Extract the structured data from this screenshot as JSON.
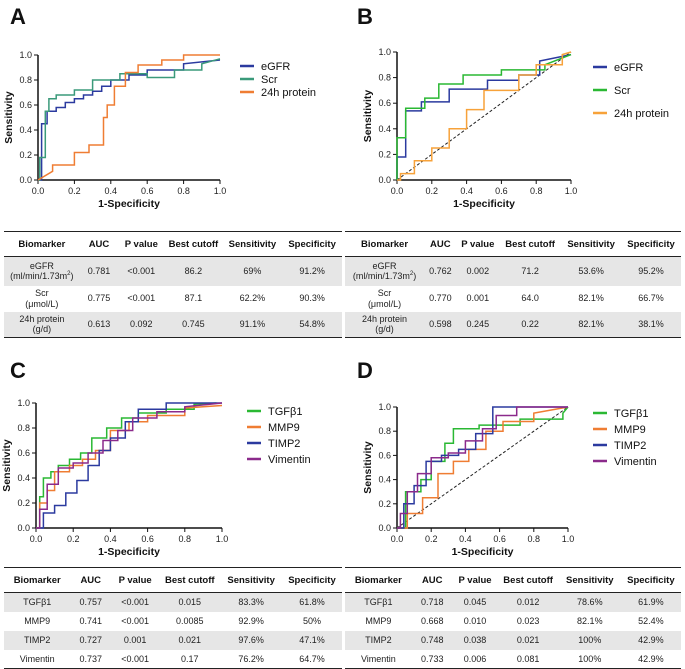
{
  "panels": [
    {
      "letter": "A",
      "chart": {
        "xlabel": "1-Specificity",
        "ylabel": "Sensitivity",
        "ticks": [
          "0.0",
          "0.2",
          "0.4",
          "0.6",
          "0.8",
          "1.0"
        ]
      },
      "table": {
        "headers": [
          "Biomarker",
          "AUC",
          "P value",
          "Best cutoff",
          "Sensitivity",
          "Specificity"
        ],
        "rows": [
          {
            "name": "eGFR",
            "sub": "(ml/min/1.73m",
            "sup": "2",
            "subEnd": ")",
            "auc": "0.781",
            "p": "<0.001",
            "cutoff": "86.2",
            "sens": "69%",
            "spec": "91.2%"
          },
          {
            "name": "Scr",
            "sub": "(μmol/L)",
            "sup": "",
            "subEnd": "",
            "auc": "0.775",
            "p": "<0.001",
            "cutoff": "87.1",
            "sens": "62.2%",
            "spec": "90.3%"
          },
          {
            "name": "24h protein",
            "sub": "(g/d)",
            "sup": "",
            "subEnd": "",
            "auc": "0.613",
            "p": "0.092",
            "cutoff": "0.745",
            "sens": "91.1%",
            "spec": "54.8%"
          }
        ]
      }
    },
    {
      "letter": "B",
      "chart": {
        "xlabel": "1-Specificity",
        "ylabel": "Sensitivity",
        "ticks": [
          "0.0",
          "0.2",
          "0.4",
          "0.6",
          "0.8",
          "1.0"
        ]
      },
      "table": {
        "headers": [
          "Biomarker",
          "AUC",
          "P value",
          "Best cutoff",
          "Sensitivity",
          "Specificity"
        ],
        "rows": [
          {
            "name": "eGFR",
            "sub": "(ml/min/1.73m",
            "sup": "2",
            "subEnd": ")",
            "auc": "0.762",
            "p": "0.002",
            "cutoff": "71.2",
            "sens": "53.6%",
            "spec": "95.2%"
          },
          {
            "name": "Scr",
            "sub": "(μmol/L)",
            "sup": "",
            "subEnd": "",
            "auc": "0.770",
            "p": "0.001",
            "cutoff": "64.0",
            "sens": "82.1%",
            "spec": "66.7%"
          },
          {
            "name": "24h protein",
            "sub": "(g/d)",
            "sup": "",
            "subEnd": "",
            "auc": "0.598",
            "p": "0.245",
            "cutoff": "0.22",
            "sens": "82.1%",
            "spec": "38.1%"
          }
        ]
      }
    },
    {
      "letter": "C",
      "chart": {
        "xlabel": "1-Specificity",
        "ylabel": "Sensitivity",
        "ticks": [
          "0.0",
          "0.2",
          "0.4",
          "0.6",
          "0.8",
          "1.0"
        ]
      },
      "table": {
        "headers": [
          "Biomarker",
          "AUC",
          "P value",
          "Best cutoff",
          "Sensitivity",
          "Specificity"
        ],
        "rows": [
          {
            "name": "TGFβ1",
            "auc": "0.757",
            "p": "<0.001",
            "cutoff": "0.015",
            "sens": "83.3%",
            "spec": "61.8%"
          },
          {
            "name": "MMP9",
            "auc": "0.741",
            "p": "<0.001",
            "cutoff": "0.0085",
            "sens": "92.9%",
            "spec": "50%"
          },
          {
            "name": "TIMP2",
            "auc": "0.727",
            "p": "0.001",
            "cutoff": "0.021",
            "sens": "97.6%",
            "spec": "47.1%"
          },
          {
            "name": "Vimentin",
            "auc": "0.737",
            "p": "<0.001",
            "cutoff": "0.17",
            "sens": "76.2%",
            "spec": "64.7%"
          }
        ]
      }
    },
    {
      "letter": "D",
      "chart": {
        "xlabel": "1-Specificity",
        "ylabel": "Sensitivity",
        "ticks": [
          "0.0",
          "0.2",
          "0.4",
          "0.6",
          "0.8",
          "1.0"
        ]
      },
      "table": {
        "headers": [
          "Biomarker",
          "AUC",
          "P value",
          "Best cutoff",
          "Sensitivity",
          "Specificity"
        ],
        "rows": [
          {
            "name": "TGFβ1",
            "auc": "0.718",
            "p": "0.045",
            "cutoff": "0.012",
            "sens": "78.6%",
            "spec": "61.9%"
          },
          {
            "name": "MMP9",
            "auc": "0.668",
            "p": "0.010",
            "cutoff": "0.023",
            "sens": "82.1%",
            "spec": "52.4%"
          },
          {
            "name": "TIMP2",
            "auc": "0.748",
            "p": "0.038",
            "cutoff": "0.021",
            "sens": "100%",
            "spec": "42.9%"
          },
          {
            "name": "Vimentin",
            "auc": "0.733",
            "p": "0.006",
            "cutoff": "0.081",
            "sens": "100%",
            "spec": "42.9%"
          }
        ]
      }
    }
  ],
  "chart_data": [
    {
      "type": "line",
      "title": "A",
      "xlabel": "1-Specificity",
      "ylabel": "Sensitivity",
      "xlim": [
        0,
        1
      ],
      "ylim": [
        0,
        1
      ],
      "diagonal": false,
      "legend": "right",
      "series": [
        {
          "name": "eGFR",
          "color": "#2b3a9f",
          "x": [
            0,
            0.02,
            0.02,
            0.05,
            0.05,
            0.1,
            0.1,
            0.15,
            0.15,
            0.2,
            0.2,
            0.25,
            0.25,
            0.3,
            0.3,
            0.35,
            0.35,
            0.4,
            0.4,
            0.5,
            0.5,
            0.6,
            0.6,
            0.8,
            0.8,
            1
          ],
          "y": [
            0,
            0,
            0.45,
            0.45,
            0.55,
            0.55,
            0.58,
            0.58,
            0.62,
            0.62,
            0.65,
            0.65,
            0.68,
            0.68,
            0.71,
            0.71,
            0.75,
            0.75,
            0.8,
            0.8,
            0.84,
            0.84,
            0.88,
            0.88,
            0.93,
            0.96
          ]
        },
        {
          "name": "Scr",
          "color": "#3a9a7a",
          "x": [
            0,
            0.01,
            0.01,
            0.04,
            0.04,
            0.06,
            0.06,
            0.1,
            0.1,
            0.2,
            0.2,
            0.3,
            0.3,
            0.45,
            0.45,
            0.6,
            0.6,
            0.75,
            0.75,
            0.9,
            0.9,
            1
          ],
          "y": [
            0,
            0,
            0.18,
            0.18,
            0.55,
            0.55,
            0.65,
            0.65,
            0.68,
            0.68,
            0.72,
            0.72,
            0.8,
            0.8,
            0.85,
            0.85,
            0.82,
            0.82,
            0.88,
            0.88,
            0.93,
            0.97
          ]
        },
        {
          "name": "24h protein",
          "color": "#ef7d33",
          "x": [
            0,
            0.08,
            0.08,
            0.2,
            0.2,
            0.28,
            0.28,
            0.36,
            0.36,
            0.38,
            0.38,
            0.42,
            0.42,
            0.48,
            0.48,
            0.55,
            0.55,
            0.68,
            0.68,
            0.8,
            0.8,
            1
          ],
          "y": [
            0,
            0.07,
            0.12,
            0.12,
            0.22,
            0.22,
            0.28,
            0.28,
            0.5,
            0.5,
            0.6,
            0.6,
            0.75,
            0.75,
            0.86,
            0.86,
            0.92,
            0.92,
            0.96,
            0.96,
            1,
            1
          ]
        }
      ]
    },
    {
      "type": "line",
      "title": "B",
      "xlabel": "1-Specificity",
      "ylabel": "Sensitivity",
      "xlim": [
        0,
        1
      ],
      "ylim": [
        0,
        1
      ],
      "diagonal": true,
      "legend": "right",
      "series": [
        {
          "name": "eGFR",
          "color": "#2b3a9f",
          "x": [
            0,
            0,
            0.05,
            0.05,
            0.14,
            0.14,
            0.3,
            0.3,
            0.52,
            0.52,
            0.7,
            0.7,
            0.82,
            0.82,
            1
          ],
          "y": [
            0,
            0.18,
            0.18,
            0.54,
            0.54,
            0.61,
            0.61,
            0.71,
            0.71,
            0.78,
            0.78,
            0.82,
            0.82,
            0.93,
            0.98
          ]
        },
        {
          "name": "Scr",
          "color": "#2ab833",
          "x": [
            0,
            0,
            0.05,
            0.05,
            0.16,
            0.16,
            0.24,
            0.24,
            0.38,
            0.38,
            0.6,
            0.6,
            0.85,
            0.85,
            1
          ],
          "y": [
            0,
            0.33,
            0.33,
            0.56,
            0.56,
            0.64,
            0.64,
            0.75,
            0.75,
            0.82,
            0.82,
            0.86,
            0.86,
            0.9,
            0.98
          ]
        },
        {
          "name": "24h protein",
          "color": "#f7a23a",
          "x": [
            0,
            0.02,
            0.02,
            0.1,
            0.1,
            0.2,
            0.2,
            0.3,
            0.3,
            0.4,
            0.4,
            0.5,
            0.5,
            0.7,
            0.7,
            0.8,
            0.8,
            0.95,
            0.95,
            1
          ],
          "y": [
            0,
            0,
            0.05,
            0.05,
            0.15,
            0.15,
            0.25,
            0.25,
            0.4,
            0.4,
            0.55,
            0.55,
            0.7,
            0.7,
            0.82,
            0.82,
            0.9,
            0.9,
            0.98,
            1
          ]
        }
      ]
    },
    {
      "type": "line",
      "title": "C",
      "xlabel": "1-Specificity",
      "ylabel": "Sensitivity",
      "xlim": [
        0,
        1
      ],
      "ylim": [
        0,
        1
      ],
      "diagonal": false,
      "legend": "right",
      "series": [
        {
          "name": "TGFβ1",
          "color": "#2ab833",
          "x": [
            0,
            0.02,
            0.02,
            0.04,
            0.04,
            0.08,
            0.08,
            0.12,
            0.12,
            0.18,
            0.18,
            0.24,
            0.24,
            0.3,
            0.3,
            0.38,
            0.38,
            0.46,
            0.46,
            0.55,
            0.55,
            0.7,
            0.7,
            0.85,
            0.85,
            0.97
          ],
          "y": [
            0,
            0,
            0.25,
            0.25,
            0.4,
            0.4,
            0.45,
            0.45,
            0.5,
            0.5,
            0.55,
            0.55,
            0.6,
            0.6,
            0.72,
            0.72,
            0.8,
            0.8,
            0.88,
            0.88,
            0.92,
            0.92,
            0.95,
            0.95,
            0.99,
            1
          ]
        },
        {
          "name": "MMP9",
          "color": "#ef7d33",
          "x": [
            0,
            0.02,
            0.02,
            0.06,
            0.06,
            0.1,
            0.1,
            0.18,
            0.18,
            0.25,
            0.25,
            0.32,
            0.32,
            0.4,
            0.4,
            0.5,
            0.5,
            0.6,
            0.6,
            0.8,
            0.8,
            1
          ],
          "y": [
            0,
            0,
            0.2,
            0.2,
            0.3,
            0.3,
            0.45,
            0.45,
            0.5,
            0.5,
            0.55,
            0.55,
            0.62,
            0.62,
            0.78,
            0.78,
            0.85,
            0.85,
            0.9,
            0.9,
            0.96,
            0.98
          ]
        },
        {
          "name": "TIMP2",
          "color": "#2b3a9f",
          "x": [
            0,
            0.04,
            0.04,
            0.1,
            0.1,
            0.16,
            0.16,
            0.22,
            0.22,
            0.28,
            0.28,
            0.34,
            0.34,
            0.4,
            0.4,
            0.48,
            0.48,
            0.55,
            0.55,
            0.7,
            0.7,
            0.85,
            0.85,
            1
          ],
          "y": [
            0,
            0,
            0.12,
            0.12,
            0.18,
            0.18,
            0.28,
            0.28,
            0.38,
            0.38,
            0.5,
            0.5,
            0.62,
            0.62,
            0.72,
            0.72,
            0.85,
            0.85,
            0.95,
            0.95,
            1,
            1,
            1,
            1
          ]
        },
        {
          "name": "Vimentin",
          "color": "#8b2a8b",
          "x": [
            0,
            0.02,
            0.02,
            0.06,
            0.06,
            0.12,
            0.12,
            0.2,
            0.2,
            0.28,
            0.28,
            0.36,
            0.36,
            0.44,
            0.44,
            0.52,
            0.52,
            0.65,
            0.65,
            0.8,
            0.8,
            1
          ],
          "y": [
            0,
            0,
            0.15,
            0.15,
            0.35,
            0.35,
            0.48,
            0.48,
            0.52,
            0.52,
            0.6,
            0.6,
            0.7,
            0.7,
            0.78,
            0.78,
            0.88,
            0.88,
            0.93,
            0.93,
            0.97,
            1
          ]
        }
      ]
    },
    {
      "type": "line",
      "title": "D",
      "xlabel": "1-Specificity",
      "ylabel": "Sensitivity",
      "xlim": [
        0,
        1
      ],
      "ylim": [
        0,
        1
      ],
      "diagonal": true,
      "legend": "right",
      "series": [
        {
          "name": "TGFβ1",
          "color": "#2ab833",
          "x": [
            0,
            0.05,
            0.05,
            0.14,
            0.14,
            0.2,
            0.2,
            0.28,
            0.28,
            0.33,
            0.33,
            0.48,
            0.48,
            0.72,
            0.72,
            0.97,
            0.97,
            1
          ],
          "y": [
            0,
            0,
            0.3,
            0.3,
            0.4,
            0.4,
            0.55,
            0.55,
            0.7,
            0.7,
            0.82,
            0.82,
            0.85,
            0.85,
            0.9,
            0.9,
            0.95,
            1
          ]
        },
        {
          "name": "MMP9",
          "color": "#ef7d33",
          "x": [
            0,
            0.06,
            0.06,
            0.15,
            0.15,
            0.24,
            0.24,
            0.33,
            0.33,
            0.42,
            0.42,
            0.52,
            0.52,
            0.62,
            0.62,
            0.8,
            0.8,
            1
          ],
          "y": [
            0,
            0,
            0.12,
            0.12,
            0.25,
            0.25,
            0.45,
            0.45,
            0.55,
            0.55,
            0.65,
            0.65,
            0.8,
            0.8,
            0.88,
            0.88,
            0.95,
            1
          ]
        },
        {
          "name": "TIMP2",
          "color": "#2b3a9f",
          "x": [
            0,
            0.04,
            0.04,
            0.1,
            0.1,
            0.17,
            0.17,
            0.26,
            0.26,
            0.36,
            0.36,
            0.46,
            0.46,
            0.56,
            0.56,
            0.82,
            0.82,
            1
          ],
          "y": [
            0,
            0,
            0.2,
            0.2,
            0.35,
            0.35,
            0.55,
            0.55,
            0.6,
            0.6,
            0.65,
            0.65,
            0.78,
            0.78,
            1,
            1,
            1,
            1
          ]
        },
        {
          "name": "Vimentin",
          "color": "#8b2a8b",
          "x": [
            0,
            0.02,
            0.02,
            0.06,
            0.06,
            0.12,
            0.12,
            0.2,
            0.2,
            0.3,
            0.3,
            0.4,
            0.4,
            0.5,
            0.5,
            0.58,
            0.58,
            0.7,
            0.7,
            1
          ],
          "y": [
            0,
            0,
            0.12,
            0.12,
            0.3,
            0.3,
            0.45,
            0.45,
            0.58,
            0.58,
            0.62,
            0.62,
            0.72,
            0.72,
            0.82,
            0.82,
            0.93,
            0.93,
            1,
            1
          ]
        }
      ]
    }
  ]
}
